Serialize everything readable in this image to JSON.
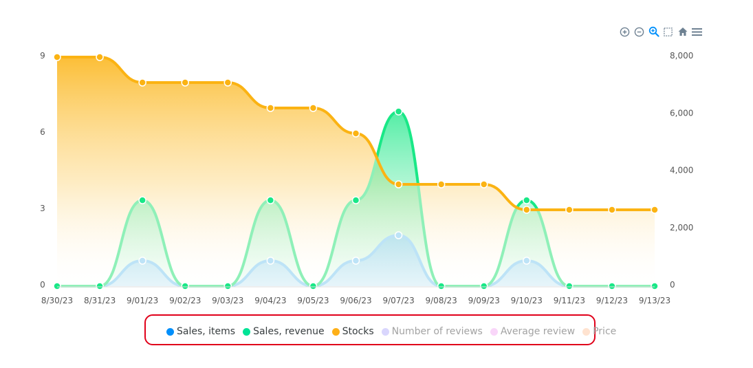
{
  "toolbar": {
    "icons": [
      "zoom-in-icon",
      "zoom-out-icon",
      "zoom-selection-icon",
      "pan-selection-icon",
      "reset-home-icon",
      "menu-icon"
    ]
  },
  "legend": {
    "items": [
      {
        "label": "Sales, items",
        "color": "#008ffb",
        "active": true
      },
      {
        "label": "Sales, revenue",
        "color": "#00e396",
        "active": true
      },
      {
        "label": "Stocks",
        "color": "#feb019",
        "active": true
      },
      {
        "label": "Number of reviews",
        "color": "#d9d6fd",
        "active": false
      },
      {
        "label": "Average review",
        "color": "#f9d6f9",
        "active": false
      },
      {
        "label": "Price",
        "color": "#ffe3d0",
        "active": false
      }
    ]
  },
  "chart_data": {
    "type": "area",
    "categories": [
      "8/30/23",
      "8/31/23",
      "9/01/23",
      "9/02/23",
      "9/03/23",
      "9/04/23",
      "9/05/23",
      "9/06/23",
      "9/07/23",
      "9/08/23",
      "9/09/23",
      "9/10/23",
      "9/11/23",
      "9/12/23",
      "9/13/23"
    ],
    "y_left": {
      "ticks": [
        "0",
        "3",
        "6",
        "9"
      ],
      "range": [
        0,
        9
      ]
    },
    "y_right": {
      "ticks": [
        "0",
        "2,000",
        "4,000",
        "6,000",
        "8,000"
      ],
      "range": [
        0,
        8000
      ]
    },
    "series": [
      {
        "name": "Sales, items",
        "axis": "left",
        "color": "#bde3f7",
        "values": [
          0,
          0,
          1,
          0,
          0,
          1,
          0,
          1,
          2,
          0,
          0,
          1,
          0,
          0,
          0
        ]
      },
      {
        "name": "Sales, revenue",
        "axis": "right",
        "color": "#8ff0b8",
        "highlight_color": "#19e887",
        "values": [
          0,
          0,
          3000,
          0,
          0,
          3000,
          0,
          3000,
          6100,
          0,
          0,
          3000,
          0,
          0,
          0
        ]
      },
      {
        "name": "Stocks",
        "axis": "left",
        "color": "#fbb313",
        "values": [
          9,
          9,
          8,
          8,
          8,
          7,
          7,
          6,
          4,
          4,
          4,
          3,
          3,
          3,
          3
        ]
      }
    ],
    "grid": false,
    "legend_position": "bottom"
  }
}
